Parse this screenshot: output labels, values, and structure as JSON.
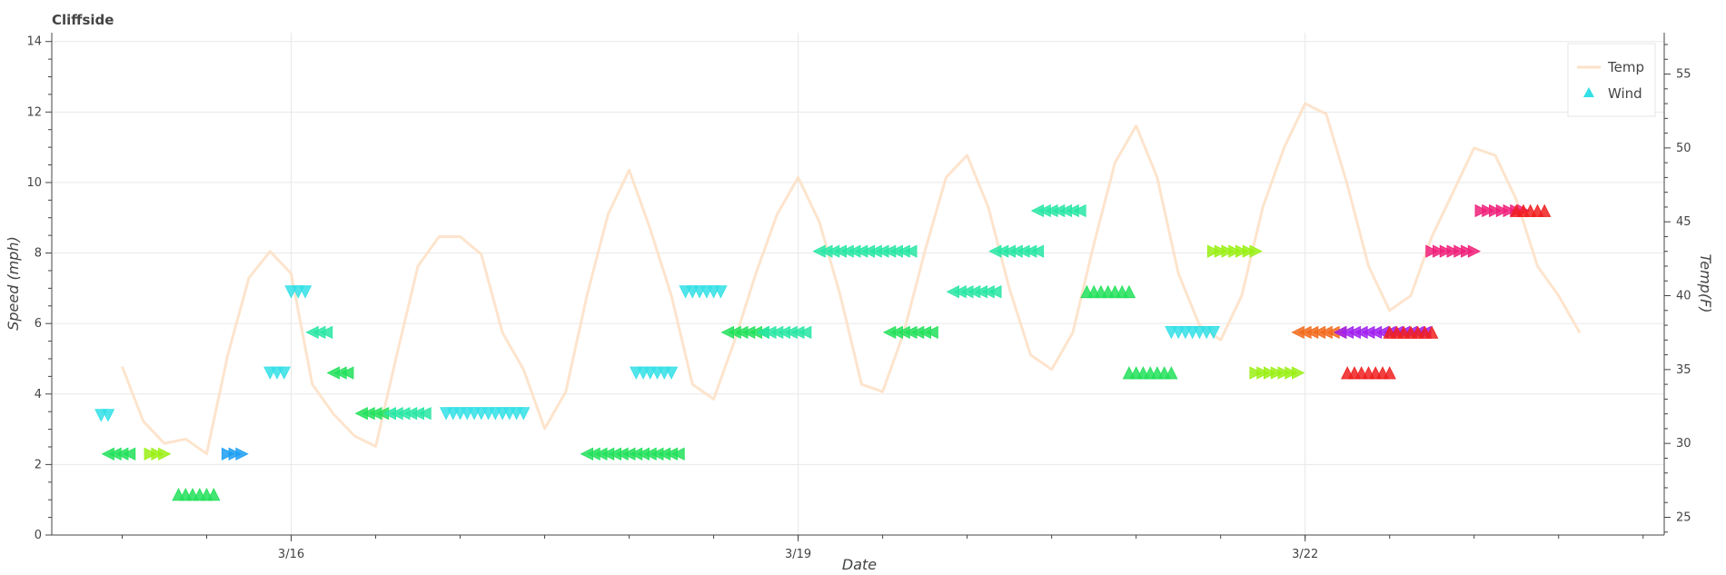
{
  "chart_data": {
    "type": "line+scatter",
    "title": "Cliffside",
    "xlabel": "Date",
    "ylabel": "Speed (mph)",
    "y2label": "Temp(F)",
    "x_range": [
      "3/14 14:00",
      "3/24 03:00"
    ],
    "x_ticks": [
      {
        "value": "3/16 00:00",
        "label": "3/16"
      },
      {
        "value": "3/19 00:00",
        "label": "3/19"
      },
      {
        "value": "3/22 00:00",
        "label": "3/22"
      }
    ],
    "ylim": [
      0,
      14.25
    ],
    "y_ticks": [
      "0",
      "2",
      "4",
      "6",
      "8",
      "10",
      "12",
      "14"
    ],
    "y2lim": [
      23.8,
      57.8
    ],
    "y2_ticks": [
      "25",
      "30",
      "35",
      "40",
      "45",
      "50",
      "55"
    ],
    "grid": true,
    "legend": {
      "placement": "top-right",
      "entries": [
        {
          "label": "Temp",
          "marker": "line",
          "color": "#fde1c8"
        },
        {
          "label": "Wind",
          "marker": "triangle",
          "color": "#33e0e6"
        }
      ]
    },
    "series": [
      {
        "name": "Temp",
        "kind": "line",
        "axis": "right",
        "color": "#fde1c8",
        "x": [
          "3/15 00:00",
          "3/15 03:00",
          "3/15 06:00",
          "3/15 09:00",
          "3/15 12:00",
          "3/15 15:00",
          "3/15 18:00",
          "3/15 21:00",
          "3/16 00:00",
          "3/16 03:00",
          "3/16 06:00",
          "3/16 09:00",
          "3/16 12:00",
          "3/16 15:00",
          "3/16 18:00",
          "3/16 21:00",
          "3/17 00:00",
          "3/17 03:00",
          "3/17 06:00",
          "3/17 09:00",
          "3/17 12:00",
          "3/17 15:00",
          "3/17 18:00",
          "3/17 21:00",
          "3/18 00:00",
          "3/18 03:00",
          "3/18 06:00",
          "3/18 09:00",
          "3/18 12:00",
          "3/18 15:00",
          "3/18 18:00",
          "3/18 21:00",
          "3/19 00:00",
          "3/19 03:00",
          "3/19 06:00",
          "3/19 09:00",
          "3/19 12:00",
          "3/19 15:00",
          "3/19 18:00",
          "3/19 21:00",
          "3/20 00:00",
          "3/20 03:00",
          "3/20 06:00",
          "3/20 09:00",
          "3/20 12:00",
          "3/20 15:00",
          "3/20 18:00",
          "3/20 21:00",
          "3/21 00:00",
          "3/21 03:00",
          "3/21 06:00",
          "3/21 09:00",
          "3/21 12:00",
          "3/21 15:00",
          "3/21 18:00",
          "3/21 21:00",
          "3/22 00:00",
          "3/22 03:00",
          "3/22 06:00",
          "3/22 09:00",
          "3/22 12:00",
          "3/22 15:00",
          "3/22 18:00",
          "3/22 21:00",
          "3/23 00:00",
          "3/23 03:00",
          "3/23 06:00",
          "3/23 09:00",
          "3/23 12:00",
          "3/23 15:00"
        ],
        "values": [
          35.2,
          31.5,
          30,
          30.3,
          29.3,
          36,
          41.2,
          43,
          41.5,
          34,
          32,
          30.5,
          29.8,
          36,
          42,
          44,
          44,
          42.8,
          37.5,
          35,
          31,
          33.5,
          40,
          45.5,
          48.5,
          44.5,
          40,
          34,
          33,
          37,
          41.5,
          45.5,
          48,
          45,
          40,
          34,
          33.5,
          37.5,
          43,
          48,
          49.5,
          46,
          40.5,
          36,
          35,
          37.5,
          43.5,
          49,
          51.5,
          48,
          41.5,
          38,
          37,
          40,
          46,
          50,
          53,
          52.3,
          47.5,
          42,
          39,
          40,
          44,
          47,
          50,
          49.5,
          46.5,
          42,
          40,
          37.5
        ]
      },
      {
        "name": "Wind",
        "kind": "scatter",
        "axis": "left",
        "marker": "triangle",
        "groups": [
          {
            "x_start": "3/14 21:00",
            "count": 2,
            "value": 3.4,
            "dir": "down",
            "color": "#33e0e6"
          },
          {
            "x_start": "3/14 22:00",
            "count": 4,
            "value": 2.3,
            "dir": "left",
            "color": "#22e05a"
          },
          {
            "x_start": "3/15 04:00",
            "count": 3,
            "value": 2.3,
            "dir": "right",
            "color": "#9af015"
          },
          {
            "x_start": "3/15 08:00",
            "count": 6,
            "value": 1.15,
            "dir": "up",
            "color": "#22e05a"
          },
          {
            "x_start": "3/15 15:00",
            "count": 3,
            "value": 2.3,
            "dir": "right",
            "color": "#1b9ef2"
          },
          {
            "x_start": "3/15 21:00",
            "count": 3,
            "value": 4.6,
            "dir": "down",
            "color": "#33e0e6"
          },
          {
            "x_start": "3/16 00:00",
            "count": 3,
            "value": 6.9,
            "dir": "down",
            "color": "#33e0e6"
          },
          {
            "x_start": "3/16 03:00",
            "count": 3,
            "value": 5.75,
            "dir": "left",
            "color": "#28e6a5"
          },
          {
            "x_start": "3/16 06:00",
            "count": 3,
            "value": 4.6,
            "dir": "left",
            "color": "#22e05a"
          },
          {
            "x_start": "3/16 10:00",
            "count": 4,
            "value": 3.45,
            "dir": "left",
            "color": "#22e05a"
          },
          {
            "x_start": "3/16 14:00",
            "count": 6,
            "value": 3.45,
            "dir": "left",
            "color": "#28e6a5"
          },
          {
            "x_start": "3/16 22:00",
            "count": 12,
            "value": 3.45,
            "dir": "down",
            "color": "#33e0e6"
          },
          {
            "x_start": "3/17 18:00",
            "count": 14,
            "value": 2.3,
            "dir": "left",
            "color": "#22e05a"
          },
          {
            "x_start": "3/18 01:00",
            "count": 6,
            "value": 4.6,
            "dir": "down",
            "color": "#33e0e6"
          },
          {
            "x_start": "3/18 08:00",
            "count": 6,
            "value": 6.9,
            "dir": "down",
            "color": "#33e0e6"
          },
          {
            "x_start": "3/18 14:00",
            "count": 6,
            "value": 5.75,
            "dir": "left",
            "color": "#22e05a"
          },
          {
            "x_start": "3/18 19:00",
            "count": 7,
            "value": 5.75,
            "dir": "left",
            "color": "#28e6a5"
          },
          {
            "x_start": "3/19 03:00",
            "count": 14,
            "value": 8.05,
            "dir": "left",
            "color": "#28e6a5"
          },
          {
            "x_start": "3/19 13:00",
            "count": 7,
            "value": 5.75,
            "dir": "left",
            "color": "#22e05a"
          },
          {
            "x_start": "3/19 22:00",
            "count": 7,
            "value": 6.9,
            "dir": "left",
            "color": "#28e6a5"
          },
          {
            "x_start": "3/20 04:00",
            "count": 7,
            "value": 8.05,
            "dir": "left",
            "color": "#28e6a5"
          },
          {
            "x_start": "3/20 10:00",
            "count": 7,
            "value": 9.2,
            "dir": "left",
            "color": "#28e6a5"
          },
          {
            "x_start": "3/20 17:00",
            "count": 7,
            "value": 6.9,
            "dir": "up",
            "color": "#22e05a"
          },
          {
            "x_start": "3/20 23:00",
            "count": 7,
            "value": 4.6,
            "dir": "up",
            "color": "#22e05a"
          },
          {
            "x_start": "3/21 05:00",
            "count": 7,
            "value": 5.75,
            "dir": "down",
            "color": "#33e0e6"
          },
          {
            "x_start": "3/21 11:00",
            "count": 7,
            "value": 8.05,
            "dir": "right",
            "color": "#9af015"
          },
          {
            "x_start": "3/21 17:00",
            "count": 7,
            "value": 4.6,
            "dir": "right",
            "color": "#9af015"
          },
          {
            "x_start": "3/21 23:00",
            "count": 7,
            "value": 5.75,
            "dir": "left",
            "color": "#f26a1b"
          },
          {
            "x_start": "3/22 05:00",
            "count": 13,
            "value": 5.75,
            "dir": "left",
            "color": "#a020f0"
          },
          {
            "x_start": "3/22 06:00",
            "count": 7,
            "value": 4.6,
            "dir": "up",
            "color": "#f02020"
          },
          {
            "x_start": "3/22 12:00",
            "count": 7,
            "value": 5.75,
            "dir": "up",
            "color": "#f02020"
          },
          {
            "x_start": "3/22 18:00",
            "count": 7,
            "value": 8.05,
            "dir": "right",
            "color": "#f0207a"
          },
          {
            "x_start": "3/23 01:00",
            "count": 7,
            "value": 9.2,
            "dir": "right",
            "color": "#f0207a"
          },
          {
            "x_start": "3/23 06:00",
            "count": 5,
            "value": 9.2,
            "dir": "up",
            "color": "#f02020"
          }
        ]
      }
    ]
  }
}
